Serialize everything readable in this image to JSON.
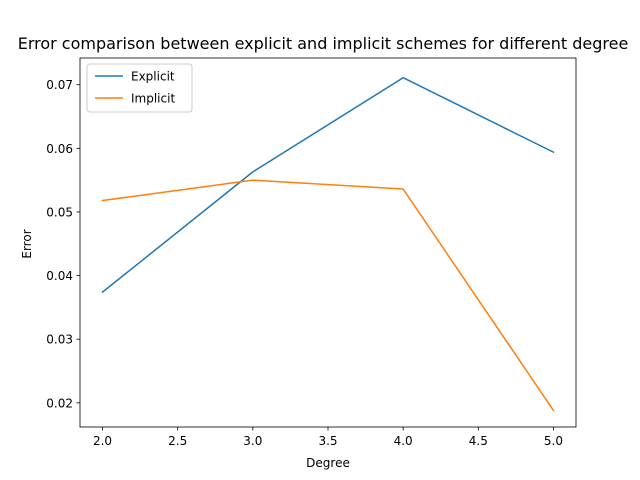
{
  "chart_data": {
    "type": "line",
    "title": "Error comparison between explicit and implicit schemes for different degree",
    "xlabel": "Degree",
    "ylabel": "Error",
    "xlim": [
      1.85,
      5.15
    ],
    "ylim": [
      0.0162,
      0.0742
    ],
    "xticks": [
      2.0,
      2.5,
      3.0,
      3.5,
      4.0,
      4.5,
      5.0
    ],
    "xtick_labels": [
      "2.0",
      "2.5",
      "3.0",
      "3.5",
      "4.0",
      "4.5",
      "5.0"
    ],
    "yticks": [
      0.02,
      0.03,
      0.04,
      0.05,
      0.06,
      0.07
    ],
    "ytick_labels": [
      "0.02",
      "0.03",
      "0.04",
      "0.05",
      "0.06",
      "0.07"
    ],
    "grid": false,
    "legend_position": "upper-left",
    "x": [
      2,
      3,
      4,
      5
    ],
    "series": [
      {
        "name": "Explicit",
        "color": "#1f77b4",
        "values": [
          0.0374,
          0.0563,
          0.0711,
          0.0594
        ]
      },
      {
        "name": "Implicit",
        "color": "#ff7f0e",
        "values": [
          0.0518,
          0.055,
          0.0536,
          0.0188
        ]
      }
    ]
  }
}
